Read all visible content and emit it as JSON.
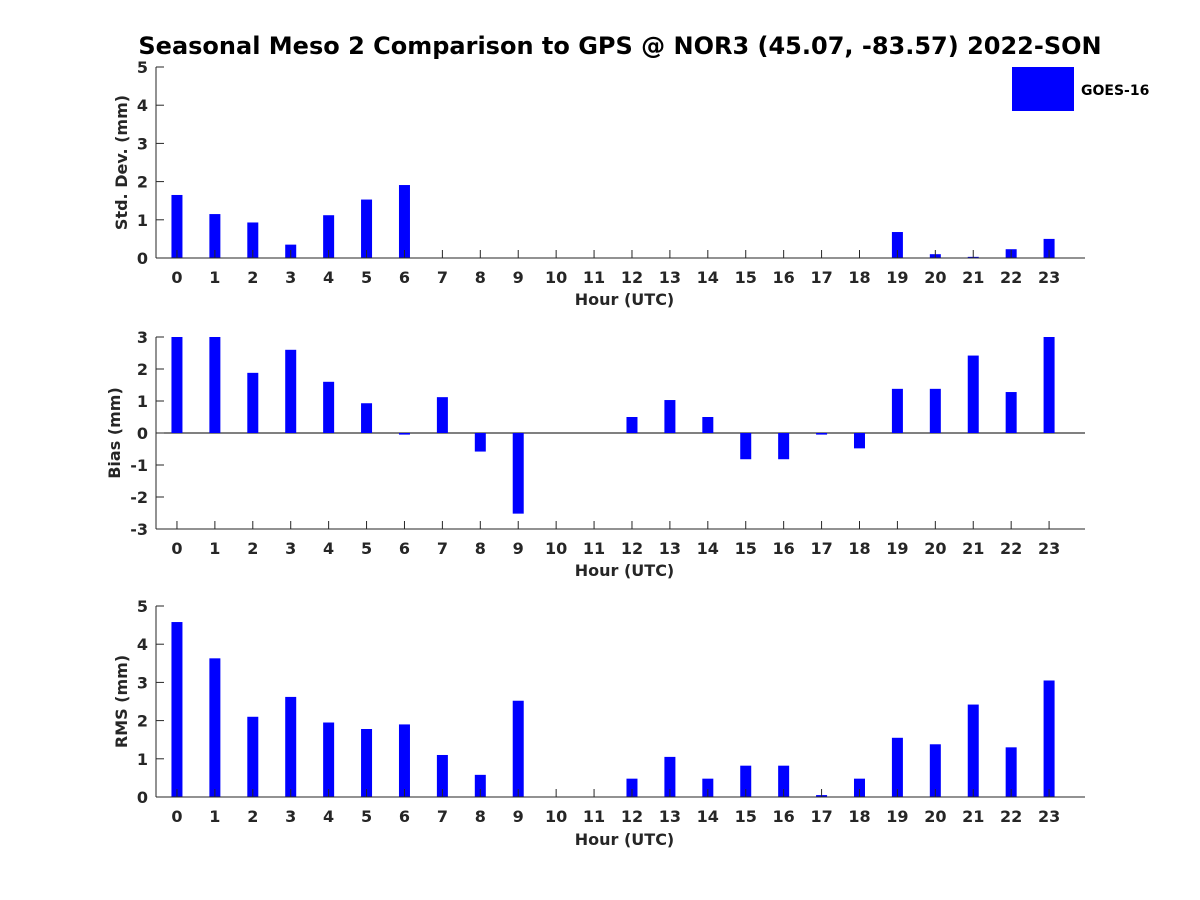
{
  "title": "Seasonal Meso 2 Comparison to GPS @ NOR3 (45.07, -83.57) 2022-SON",
  "legend": {
    "label": "GOES-16",
    "color": "#0000ff",
    "placement": "top-right"
  },
  "chart_data": [
    {
      "type": "bar",
      "name": "stddev",
      "ylabel": "Std. Dev. (mm)",
      "xlabel": "Hour (UTC)",
      "ylim": [
        0,
        5
      ],
      "yticks": [
        "0",
        "1",
        "2",
        "3",
        "4",
        "5"
      ],
      "categories": [
        "0",
        "1",
        "2",
        "3",
        "4",
        "5",
        "6",
        "7",
        "8",
        "9",
        "10",
        "11",
        "12",
        "13",
        "14",
        "15",
        "16",
        "17",
        "18",
        "19",
        "20",
        "21",
        "22",
        "23"
      ],
      "values": [
        1.65,
        1.15,
        0.93,
        0.35,
        1.12,
        1.53,
        1.91,
        0,
        0,
        0,
        0,
        0,
        0,
        0,
        0,
        0,
        0,
        0,
        0,
        0.68,
        0.1,
        0.03,
        0.23,
        0.5
      ],
      "color": "#0000ff"
    },
    {
      "type": "bar",
      "name": "bias",
      "ylabel": "Bias (mm)",
      "xlabel": "Hour (UTC)",
      "ylim": [
        -3,
        3
      ],
      "yticks": [
        "-3",
        "-2",
        "-1",
        "0",
        "1",
        "2",
        "3"
      ],
      "categories": [
        "0",
        "1",
        "2",
        "3",
        "4",
        "5",
        "6",
        "7",
        "8",
        "9",
        "10",
        "11",
        "12",
        "13",
        "14",
        "15",
        "16",
        "17",
        "18",
        "19",
        "20",
        "21",
        "22",
        "23"
      ],
      "values": [
        3.0,
        3.0,
        1.88,
        2.6,
        1.6,
        0.93,
        -0.05,
        1.12,
        -0.58,
        -2.52,
        0,
        0,
        0.5,
        1.03,
        0.5,
        -0.82,
        -0.82,
        -0.05,
        -0.48,
        1.38,
        1.38,
        2.42,
        1.28,
        3.0
      ],
      "color": "#0000ff"
    },
    {
      "type": "bar",
      "name": "rms",
      "ylabel": "RMS (mm)",
      "xlabel": "Hour (UTC)",
      "ylim": [
        0,
        5
      ],
      "yticks": [
        "0",
        "1",
        "2",
        "3",
        "4",
        "5"
      ],
      "categories": [
        "0",
        "1",
        "2",
        "3",
        "4",
        "5",
        "6",
        "7",
        "8",
        "9",
        "10",
        "11",
        "12",
        "13",
        "14",
        "15",
        "16",
        "17",
        "18",
        "19",
        "20",
        "21",
        "22",
        "23"
      ],
      "values": [
        4.58,
        3.63,
        2.1,
        2.62,
        1.95,
        1.78,
        1.9,
        1.1,
        0.58,
        2.52,
        0,
        0,
        0.48,
        1.05,
        0.48,
        0.82,
        0.82,
        0.05,
        0.48,
        1.55,
        1.38,
        2.42,
        1.3,
        3.05
      ],
      "color": "#0000ff"
    }
  ]
}
